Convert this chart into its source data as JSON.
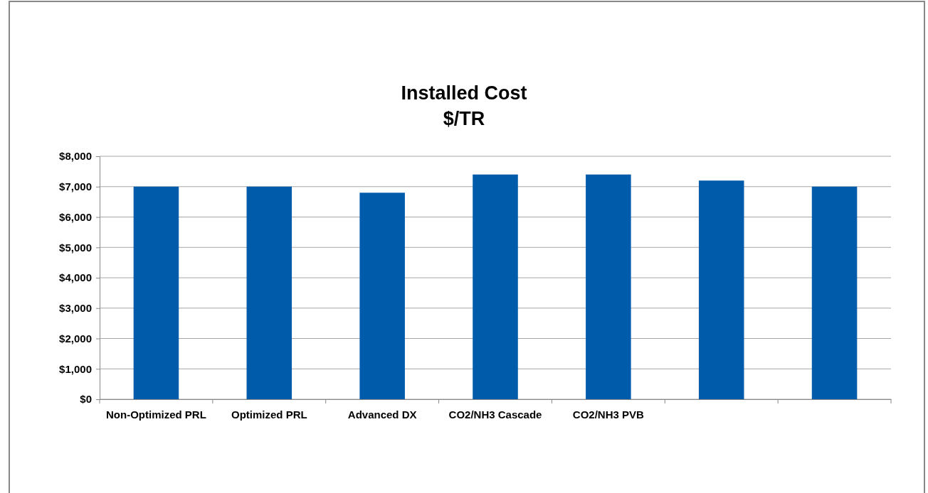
{
  "chart_data": {
    "type": "bar",
    "title": "Installed Cost",
    "subtitle": "$/TR",
    "categories": [
      "Non-Optimized PRL",
      "Optimized PRL",
      "Advanced DX",
      "CO2/NH3 Cascade",
      "CO2/NH3 PVB",
      null,
      null
    ],
    "values": [
      7000,
      7000,
      6800,
      7400,
      7400,
      7200,
      7000
    ],
    "color": "#005baa",
    "ylim": [
      0,
      8000
    ],
    "yticks": [
      {
        "value": 0,
        "label": "$0"
      },
      {
        "value": 1000,
        "label": "$1,000"
      },
      {
        "value": 2000,
        "label": "$2,000"
      },
      {
        "value": 3000,
        "label": "$3,000"
      },
      {
        "value": 4000,
        "label": "$4,000"
      },
      {
        "value": 5000,
        "label": "$5,000"
      },
      {
        "value": 6000,
        "label": "$6,000"
      },
      {
        "value": 7000,
        "label": "$7,000"
      },
      {
        "value": 8000,
        "label": "$8,000"
      }
    ],
    "grid": "y"
  }
}
